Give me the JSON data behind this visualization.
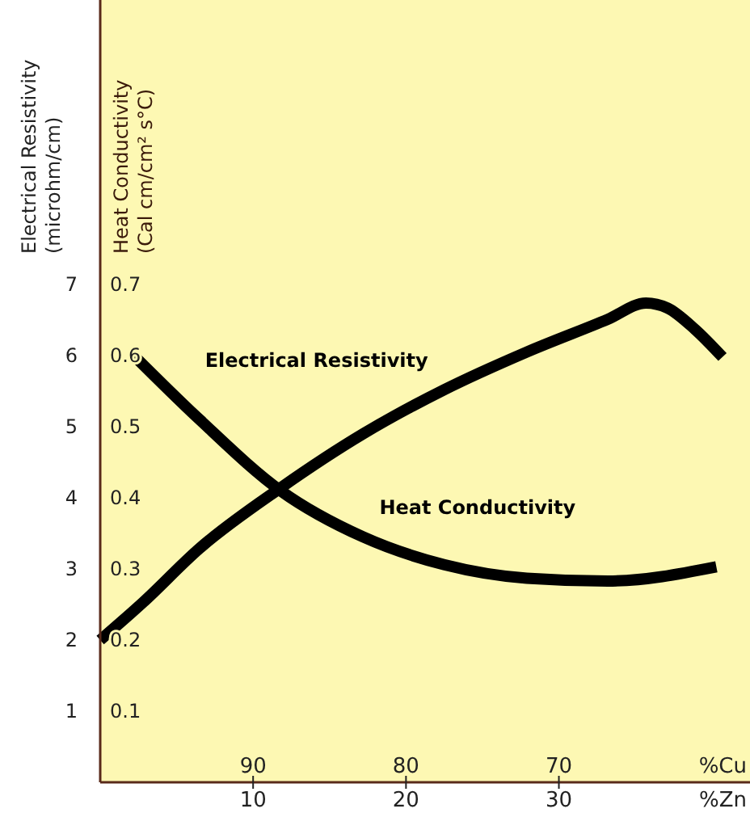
{
  "chart_data": {
    "type": "line",
    "ylabel": "Electrical Resistivity\n(microhm/cm)",
    "y2label": "Heat Conductivity\n(Cal cm/cm² s°C)",
    "xlabel": "%Zn",
    "x2label": "%Cu",
    "xlim": [
      0,
      42.5
    ],
    "xticks": [
      10,
      20,
      30
    ],
    "x2lim": [
      100,
      57.5
    ],
    "x2ticks": [
      90,
      80,
      70
    ],
    "ylim": [
      0,
      11
    ],
    "yticks": [
      1,
      2,
      3,
      4,
      5,
      6,
      7
    ],
    "y2lim": [
      0,
      1.1
    ],
    "y2ticks": [
      0.1,
      0.2,
      0.3,
      0.4,
      0.5,
      0.6,
      0.7
    ],
    "grid": false,
    "line_style": "solid",
    "marker": "none",
    "series": [
      {
        "name": "Electrical Resistivity",
        "color": "#000000",
        "x": [
          0,
          2.8,
          6.5,
          11.8,
          17.2,
          22.5,
          27.9,
          33.2,
          35.7,
          37.1,
          38.9,
          40.7
        ],
        "values": [
          2.0,
          2.53,
          3.29,
          4.14,
          4.9,
          5.52,
          6.05,
          6.51,
          6.74,
          6.67,
          6.37,
          5.98
        ]
      },
      {
        "name": "Heat Conductivity",
        "color": "#000000",
        "axis": "y2",
        "x": [
          2.2,
          6.5,
          11.8,
          17.2,
          22.5,
          27.9,
          33.2,
          40.3
        ],
        "values": [
          0.6,
          0.51,
          0.41,
          0.345,
          0.306,
          0.287,
          0.283,
          0.303
        ]
      }
    ]
  }
}
